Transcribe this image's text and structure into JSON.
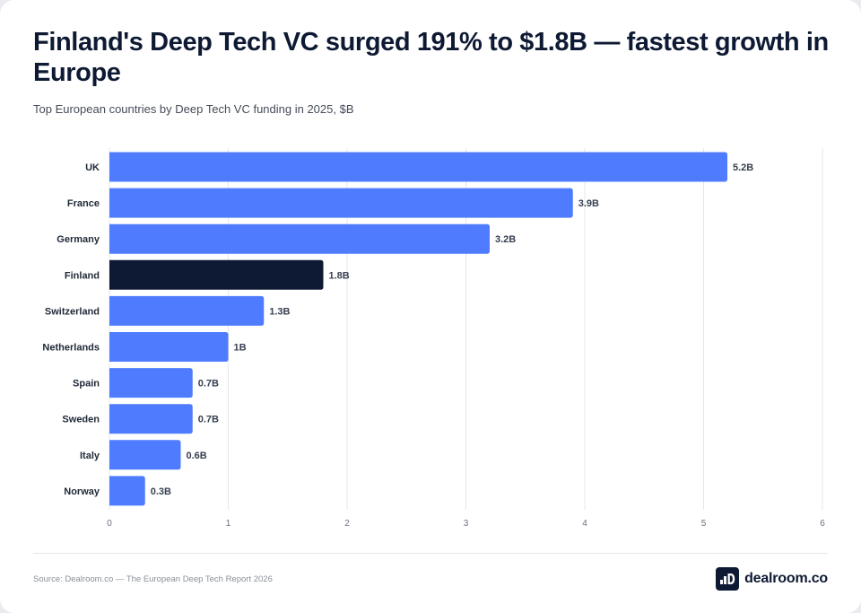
{
  "header": {
    "title": "Finland's Deep Tech VC surged 191% to $1.8B — fastest growth in Europe",
    "subtitle": "Top European countries by Deep Tech VC funding in 2025, $B"
  },
  "footer": {
    "source": "Source: Dealroom.co — The European Deep Tech Report 2026",
    "brand": "dealroom.co",
    "brand_icon": "dealroom-logo-icon"
  },
  "colors": {
    "bar": "#4f7cff",
    "highlight": "#0e1a33",
    "grid": "#e5e7eb"
  },
  "chart_data": {
    "type": "bar",
    "orientation": "horizontal",
    "title": "Finland's Deep Tech VC surged 191% to $1.8B — fastest growth in Europe",
    "subtitle": "Top European countries by Deep Tech VC funding in 2025, $B",
    "categories": [
      "UK",
      "France",
      "Germany",
      "Finland",
      "Switzerland",
      "Netherlands",
      "Spain",
      "Sweden",
      "Italy",
      "Norway"
    ],
    "values": [
      5.2,
      3.9,
      3.2,
      1.8,
      1.3,
      1.0,
      0.7,
      0.7,
      0.6,
      0.3
    ],
    "labels": [
      "5.2B",
      "3.9B",
      "3.2B",
      "1.8B",
      "1.3B",
      "1B",
      "0.7B",
      "0.7B",
      "0.6B",
      "0.3B"
    ],
    "highlight": "Finland",
    "xlim": [
      0,
      6
    ],
    "xticks": [
      "0",
      "1",
      "2",
      "3",
      "4",
      "5",
      "6"
    ],
    "xlabel": "",
    "ylabel": "",
    "grid": true
  }
}
